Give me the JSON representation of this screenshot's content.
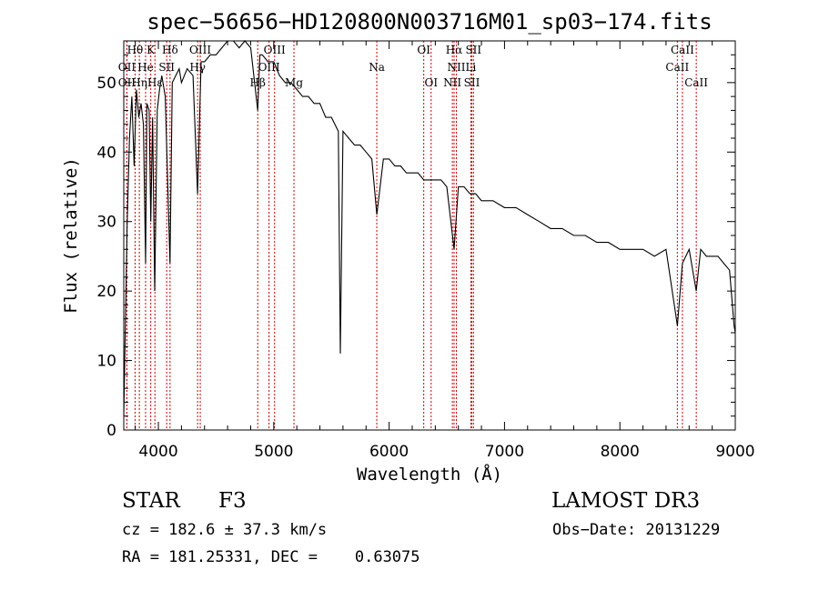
{
  "chart_data": {
    "type": "line",
    "title": "spec−56656−HD120800N003716M01_sp03−174.fits",
    "xlabel": "Wavelength (Å)",
    "ylabel": "Flux (relative)",
    "xlim": [
      3700,
      9000
    ],
    "ylim": [
      0,
      56
    ],
    "xticks": [
      4000,
      5000,
      6000,
      7000,
      8000,
      9000
    ],
    "yticks": [
      0,
      10,
      20,
      30,
      40,
      50
    ],
    "grid": false,
    "legend": "none",
    "line_color": "#000000",
    "marker_color": "#cc0000",
    "series": [
      {
        "x": [
          3700,
          3730,
          3750,
          3770,
          3790,
          3810,
          3830,
          3850,
          3870,
          3889,
          3900,
          3920,
          3934,
          3950,
          3968,
          3990,
          4010,
          4030,
          4060,
          4101,
          4120,
          4150,
          4180,
          4200,
          4250,
          4300,
          4340,
          4370,
          4400,
          4450,
          4500,
          4550,
          4600,
          4650,
          4700,
          4750,
          4800,
          4861,
          4880,
          4900,
          4950,
          5000,
          5050,
          5100,
          5150,
          5200,
          5250,
          5300,
          5350,
          5400,
          5450,
          5500,
          5560,
          5577,
          5600,
          5650,
          5700,
          5750,
          5800,
          5850,
          5893,
          5950,
          6000,
          6050,
          6100,
          6150,
          6200,
          6250,
          6300,
          6350,
          6400,
          6450,
          6500,
          6563,
          6600,
          6650,
          6700,
          6750,
          6800,
          6850,
          6900,
          7000,
          7100,
          7200,
          7300,
          7400,
          7500,
          7600,
          7700,
          7800,
          7900,
          8000,
          8100,
          8200,
          8300,
          8400,
          8498,
          8542,
          8600,
          8662,
          8700,
          8750,
          8800,
          8850,
          8900,
          8950,
          8990,
          9000
        ],
        "y": [
          2,
          30,
          42,
          48,
          38,
          49,
          45,
          47,
          44,
          24,
          47,
          46,
          30,
          45,
          20,
          46,
          49,
          51,
          48,
          24,
          50,
          51,
          52,
          50,
          52,
          51,
          34,
          53,
          53,
          54,
          54,
          55,
          56,
          56,
          55,
          56,
          55,
          46,
          54,
          54,
          53,
          53,
          51,
          50,
          50,
          49,
          48,
          48,
          47,
          47,
          45,
          45,
          43,
          11,
          43,
          42,
          41,
          41,
          40,
          39,
          31,
          39,
          39,
          38,
          38,
          37,
          37,
          37,
          36,
          36,
          36,
          36,
          35,
          26,
          35,
          35,
          34,
          34,
          33,
          33,
          33,
          32,
          32,
          31,
          30,
          29,
          29,
          28,
          28,
          27,
          27,
          26,
          26,
          26,
          25,
          26,
          15,
          24,
          26,
          20,
          26,
          25,
          25,
          25,
          24,
          23,
          15,
          14
        ]
      }
    ],
    "lines": [
      {
        "label": "Hθ",
        "x": 3798,
        "row": 0
      },
      {
        "label": "K",
        "x": 3934,
        "row": 0
      },
      {
        "label": "Hδ",
        "x": 4101,
        "row": 0
      },
      {
        "label": "OIII",
        "x": 4363,
        "row": 0
      },
      {
        "label": "OIII",
        "x": 5007,
        "row": 0
      },
      {
        "label": "OI",
        "x": 6300,
        "row": 0
      },
      {
        "label": "Hα",
        "x": 6563,
        "row": 0
      },
      {
        "label": "SII",
        "x": 6731,
        "row": 0
      },
      {
        "label": "CaII",
        "x": 8542,
        "row": 0
      },
      {
        "label": "OII",
        "x": 3727,
        "row": 1
      },
      {
        "label": "He",
        "x": 3889,
        "row": 1
      },
      {
        "label": "SII",
        "x": 4072,
        "row": 1
      },
      {
        "label": "Hγ",
        "x": 4340,
        "row": 1
      },
      {
        "label": "OIII",
        "x": 4959,
        "row": 1
      },
      {
        "label": "Na",
        "x": 5893,
        "row": 1
      },
      {
        "label": "NII",
        "x": 6583,
        "row": 1
      },
      {
        "label": "Li",
        "x": 6708,
        "row": 1
      },
      {
        "label": "CaII",
        "x": 8498,
        "row": 1
      },
      {
        "label": "OII",
        "x": 3727,
        "row": 2
      },
      {
        "label": "Hη",
        "x": 3835,
        "row": 2
      },
      {
        "label": "Hε",
        "x": 3970,
        "row": 2
      },
      {
        "label": "Hβ",
        "x": 4861,
        "row": 2
      },
      {
        "label": "Mg",
        "x": 5175,
        "row": 2
      },
      {
        "label": "OI",
        "x": 6364,
        "row": 2
      },
      {
        "label": "NII",
        "x": 6548,
        "row": 2
      },
      {
        "label": "SII",
        "x": 6717,
        "row": 2
      },
      {
        "label": "CaII",
        "x": 8662,
        "row": 2
      }
    ]
  },
  "info": {
    "object_class": "STAR",
    "subclass": "F3",
    "survey": "LAMOST DR3",
    "redshift": "cz = 182.6 ± 37.3 km/s",
    "obs_date": "Obs−Date: 20131229",
    "coords": "RA = 181.25331, DEC =    0.63075"
  }
}
